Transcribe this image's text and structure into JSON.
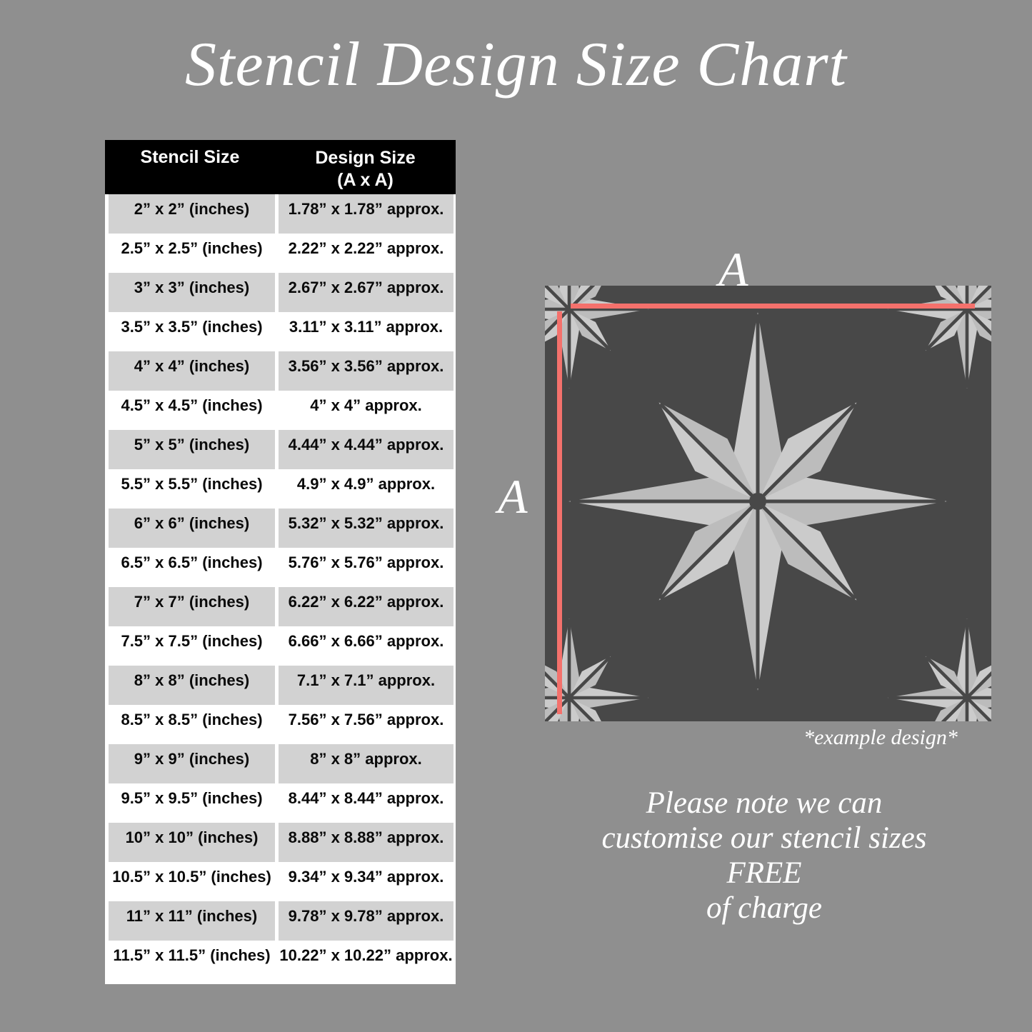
{
  "page": {
    "title": "Stencil Design Size Chart"
  },
  "colors": {
    "page_background": "#8f8f8f",
    "title_text": "#ffffff",
    "table_header_bg": "#000000",
    "table_row_gray": "#d2d2d2",
    "table_row_white": "#ffffff",
    "table_text": "#0a0a0a",
    "square_dark": "#484848",
    "star_light": "#cbcbcb",
    "star_shade": "#bcbcbc",
    "dimension_line": "#f4716c"
  },
  "table": {
    "header": {
      "stencil": "Stencil Size",
      "design_line1": "Design Size",
      "design_line2": "(A x A)"
    },
    "rows": [
      {
        "stencil": "2” x 2” (inches)",
        "design": "1.78” x 1.78” approx."
      },
      {
        "stencil": "2.5” x 2.5” (inches)",
        "design": "2.22” x 2.22” approx."
      },
      {
        "stencil": "3” x 3” (inches)",
        "design": "2.67” x 2.67” approx."
      },
      {
        "stencil": "3.5” x 3.5” (inches)",
        "design": "3.11” x 3.11” approx."
      },
      {
        "stencil": "4” x 4” (inches)",
        "design": "3.56” x 3.56” approx."
      },
      {
        "stencil": "4.5” x 4.5” (inches)",
        "design": "4” x 4” approx."
      },
      {
        "stencil": "5” x 5” (inches)",
        "design": "4.44” x 4.44” approx."
      },
      {
        "stencil": "5.5” x 5.5” (inches)",
        "design": "4.9” x 4.9” approx."
      },
      {
        "stencil": "6” x 6” (inches)",
        "design": "5.32” x 5.32” approx."
      },
      {
        "stencil": "6.5” x 6.5” (inches)",
        "design": "5.76” x 5.76” approx."
      },
      {
        "stencil": "7” x 7” (inches)",
        "design": "6.22” x 6.22” approx."
      },
      {
        "stencil": "7.5” x 7.5” (inches)",
        "design": "6.66” x 6.66” approx."
      },
      {
        "stencil": "8” x 8” (inches)",
        "design": "7.1” x 7.1” approx."
      },
      {
        "stencil": "8.5” x 8.5” (inches)",
        "design": "7.56” x 7.56” approx."
      },
      {
        "stencil": "9” x 9” (inches)",
        "design": "8” x 8” approx."
      },
      {
        "stencil": "9.5” x 9.5” (inches)",
        "design": "8.44” x 8.44” approx."
      },
      {
        "stencil": "10” x 10” (inches)",
        "design": "8.88” x 8.88” approx."
      },
      {
        "stencil": "10.5” x 10.5” (inches)",
        "design": "9.34” x 9.34” approx."
      },
      {
        "stencil": "11” x 11” (inches)",
        "design": "9.78” x 9.78” approx."
      },
      {
        "stencil": "11.5” x 11.5” (inches)",
        "design": "10.22” x 10.22” approx."
      }
    ]
  },
  "example": {
    "label_a": "A",
    "caption": "*example design*"
  },
  "note": {
    "lines": [
      "Please note we can",
      "customise our stencil sizes",
      "FREE",
      "of charge"
    ]
  }
}
